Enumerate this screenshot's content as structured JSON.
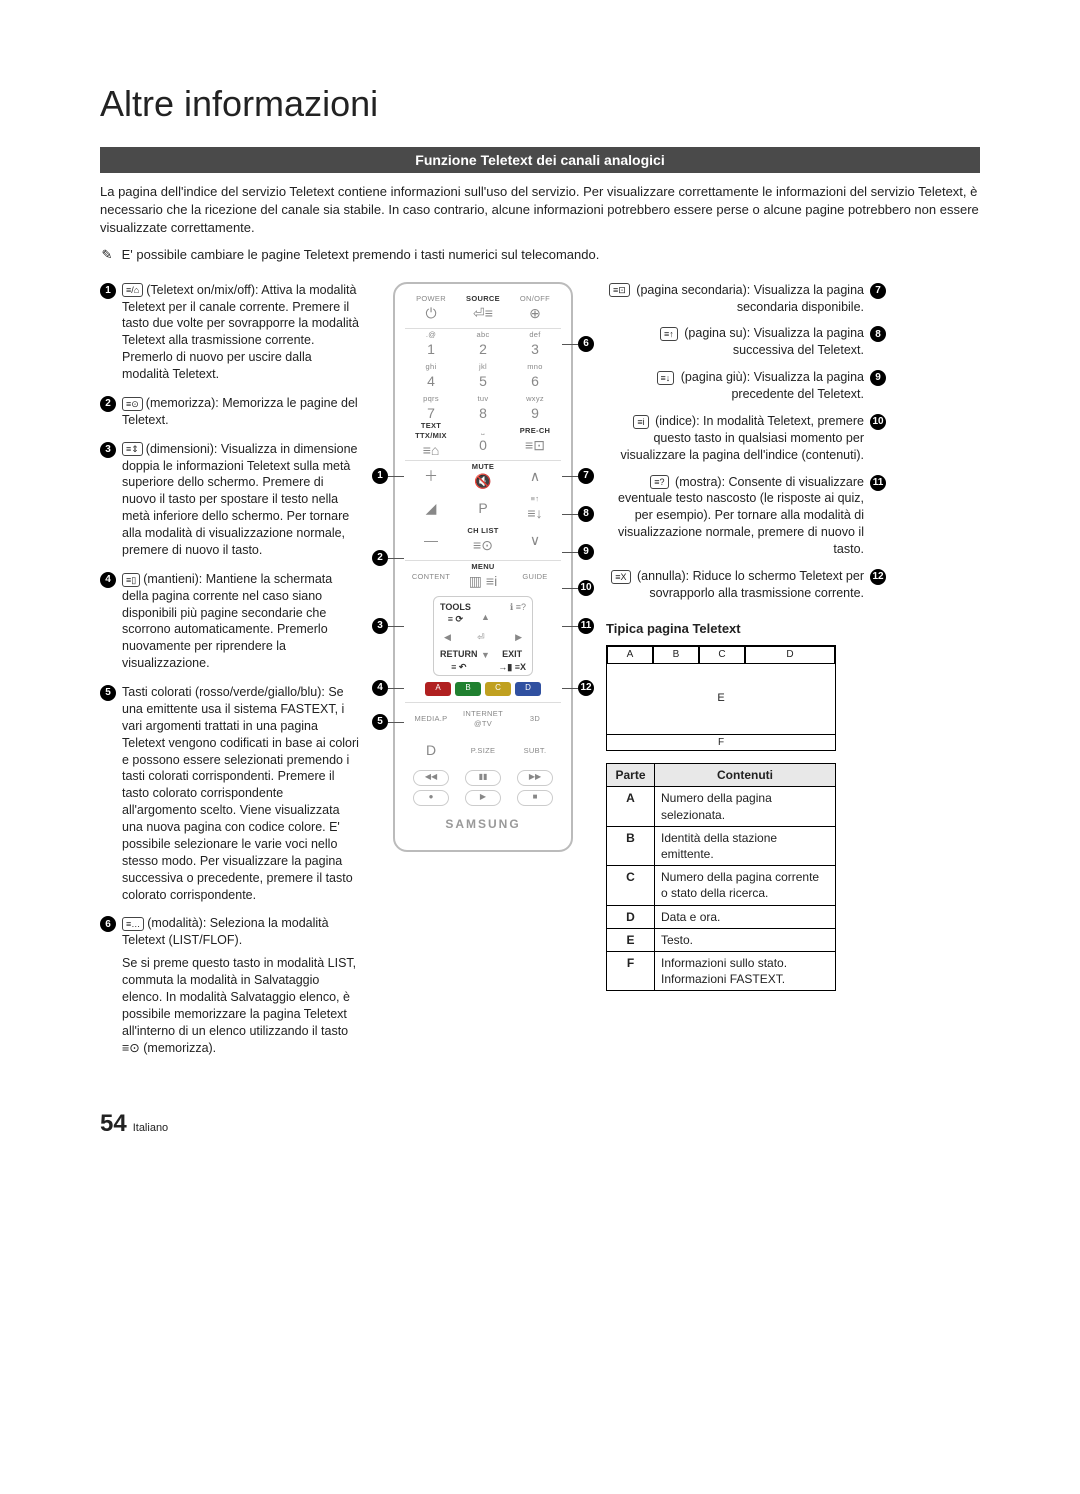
{
  "title": "Altre informazioni",
  "section_header": "Funzione Teletext dei canali analogici",
  "intro": "La pagina dell'indice del servizio Teletext contiene informazioni sull'uso del servizio. Per visualizzare correttamente le informazioni del servizio Teletext, è necessario che la ricezione del canale sia stabile. In caso contrario, alcune informazioni potrebbero essere perse o alcune pagine potrebbero non essere visualizzate correttamente.",
  "note_icon": "✎",
  "note": "E' possibile cambiare le pagine Teletext premendo i tasti numerici sul telecomando.",
  "left": [
    {
      "n": "1",
      "icon": "≡/⌂",
      "text": "(Teletext on/mix/off): Attiva la modalità Teletext per il canale corrente. Premere il tasto due volte per sovrapporre la modalità Teletext alla trasmissione corrente. Premerlo di nuovo per uscire dalla modalità Teletext."
    },
    {
      "n": "2",
      "icon": "≡⊙",
      "text": "(memorizza): Memorizza le pagine del Teletext."
    },
    {
      "n": "3",
      "icon": "≡⇕",
      "text": "(dimensioni): Visualizza in dimensione doppia le informazioni Teletext sulla metà superiore dello schermo. Premere di nuovo il tasto per spostare il testo nella metà inferiore dello schermo. Per tornare alla modalità di visualizzazione normale, premere di nuovo il tasto."
    },
    {
      "n": "4",
      "icon": "≡▯",
      "text": "(mantieni): Mantiene la schermata della pagina corrente nel caso siano disponibili più pagine secondarie che scorrono automaticamente. Premerlo nuovamente per riprendere la visualizzazione."
    },
    {
      "n": "5",
      "icon": "",
      "text": "Tasti colorati (rosso/verde/giallo/blu): Se una emittente usa il sistema FASTEXT, i vari argomenti trattati in una pagina Teletext vengono codificati in base ai colori e possono essere selezionati premendo i tasti colorati corrispondenti. Premere il tasto colorato corrispondente all'argomento scelto. Viene visualizzata una nuova pagina con codice colore. E' possibile selezionare le varie voci nello stesso modo. Per visualizzare la pagina successiva o precedente, premere il tasto colorato corrispondente."
    },
    {
      "n": "6",
      "icon": "≡…",
      "text": "(modalità): Seleziona la modalità Teletext (LIST/FLOF).",
      "extra": "Se si preme questo tasto in modalità LIST, commuta la modalità in Salvataggio elenco. In modalità Salvataggio elenco, è possibile memorizzare la pagina Teletext all'interno di un elenco utilizzando il tasto ≡⊙ (memorizza)."
    }
  ],
  "right": [
    {
      "n": "7",
      "icon": "≡⊡",
      "text": "(pagina secondaria): Visualizza la pagina secondaria disponibile."
    },
    {
      "n": "8",
      "icon": "≡↑",
      "text": "(pagina su): Visualizza la pagina successiva del Teletext."
    },
    {
      "n": "9",
      "icon": "≡↓",
      "text": "(pagina giù): Visualizza la pagina precedente del Teletext."
    },
    {
      "n": "10",
      "icon": "≡i",
      "text": "(indice): In modalità Teletext, premere questo tasto in qualsiasi momento per visualizzare la pagina dell'indice (contenuti)."
    },
    {
      "n": "11",
      "icon": "≡?",
      "text": "(mostra): Consente di visualizzare eventuale testo nascosto (le risposte ai quiz, per esempio). Per tornare alla modalità di visualizzazione normale, premere di nuovo il tasto."
    },
    {
      "n": "12",
      "icon": "≡X",
      "text": "(annulla): Riduce lo schermo Teletext per sovrapporlo alla trasmissione corrente."
    }
  ],
  "ttx_header": "Tipica pagina Teletext",
  "ttx_labels": {
    "A": "A",
    "B": "B",
    "C": "C",
    "D": "D",
    "E": "E",
    "F": "F"
  },
  "table": {
    "head_part": "Parte",
    "head_cont": "Contenuti",
    "rows": [
      {
        "p": "A",
        "c": "Numero della pagina selezionata."
      },
      {
        "p": "B",
        "c": "Identità della stazione emittente."
      },
      {
        "p": "C",
        "c": "Numero della pagina corrente o stato della ricerca."
      },
      {
        "p": "D",
        "c": "Data e ora."
      },
      {
        "p": "E",
        "c": "Testo."
      },
      {
        "p": "F",
        "c": "Informazioni sullo stato. Informazioni FASTEXT."
      }
    ]
  },
  "remote": {
    "row1": [
      "POWER",
      "SOURCE",
      "ON/OFF"
    ],
    "row1_icons": [
      "⏻",
      "⏎≡",
      "⊕"
    ],
    "keypad": [
      {
        "t": ".@",
        "n": "1"
      },
      {
        "t": "abc",
        "n": "2"
      },
      {
        "t": "def",
        "n": "3"
      },
      {
        "t": "ghi",
        "n": "4"
      },
      {
        "t": "jkl",
        "n": "5"
      },
      {
        "t": "mno",
        "n": "6"
      },
      {
        "t": "pqrs",
        "n": "7"
      },
      {
        "t": "tuv",
        "n": "8"
      },
      {
        "t": "wxyz",
        "n": "9"
      }
    ],
    "ttxmix": "TEXT\nTTX/MIX",
    "zero": "0",
    "prech": "PRE-CH",
    "mute": "MUTE",
    "p": "P",
    "chlist": "CH LIST",
    "content": "CONTENT",
    "menu": "MENU",
    "guide": "GUIDE",
    "tools": "TOOLS",
    "info": "ℹ",
    "return": "RETURN",
    "exit": "EXIT",
    "colors": [
      "A",
      "B",
      "C",
      "D"
    ],
    "color_bg": [
      "#b02020",
      "#208030",
      "#c0a020",
      "#3050a0"
    ],
    "media": "MEDIA.P",
    "internet": "INTERNET\n@TV",
    "threed": "3D",
    "dbtn": "D",
    "psize": "P.SIZE",
    "subt": "SUBT.",
    "transport": [
      "◀◀",
      "▮▮",
      "▶▶"
    ],
    "transport2": [
      "●",
      "▶",
      "■"
    ],
    "brand": "SAMSUNG"
  },
  "footer": {
    "page": "54",
    "lang": "Italiano"
  }
}
